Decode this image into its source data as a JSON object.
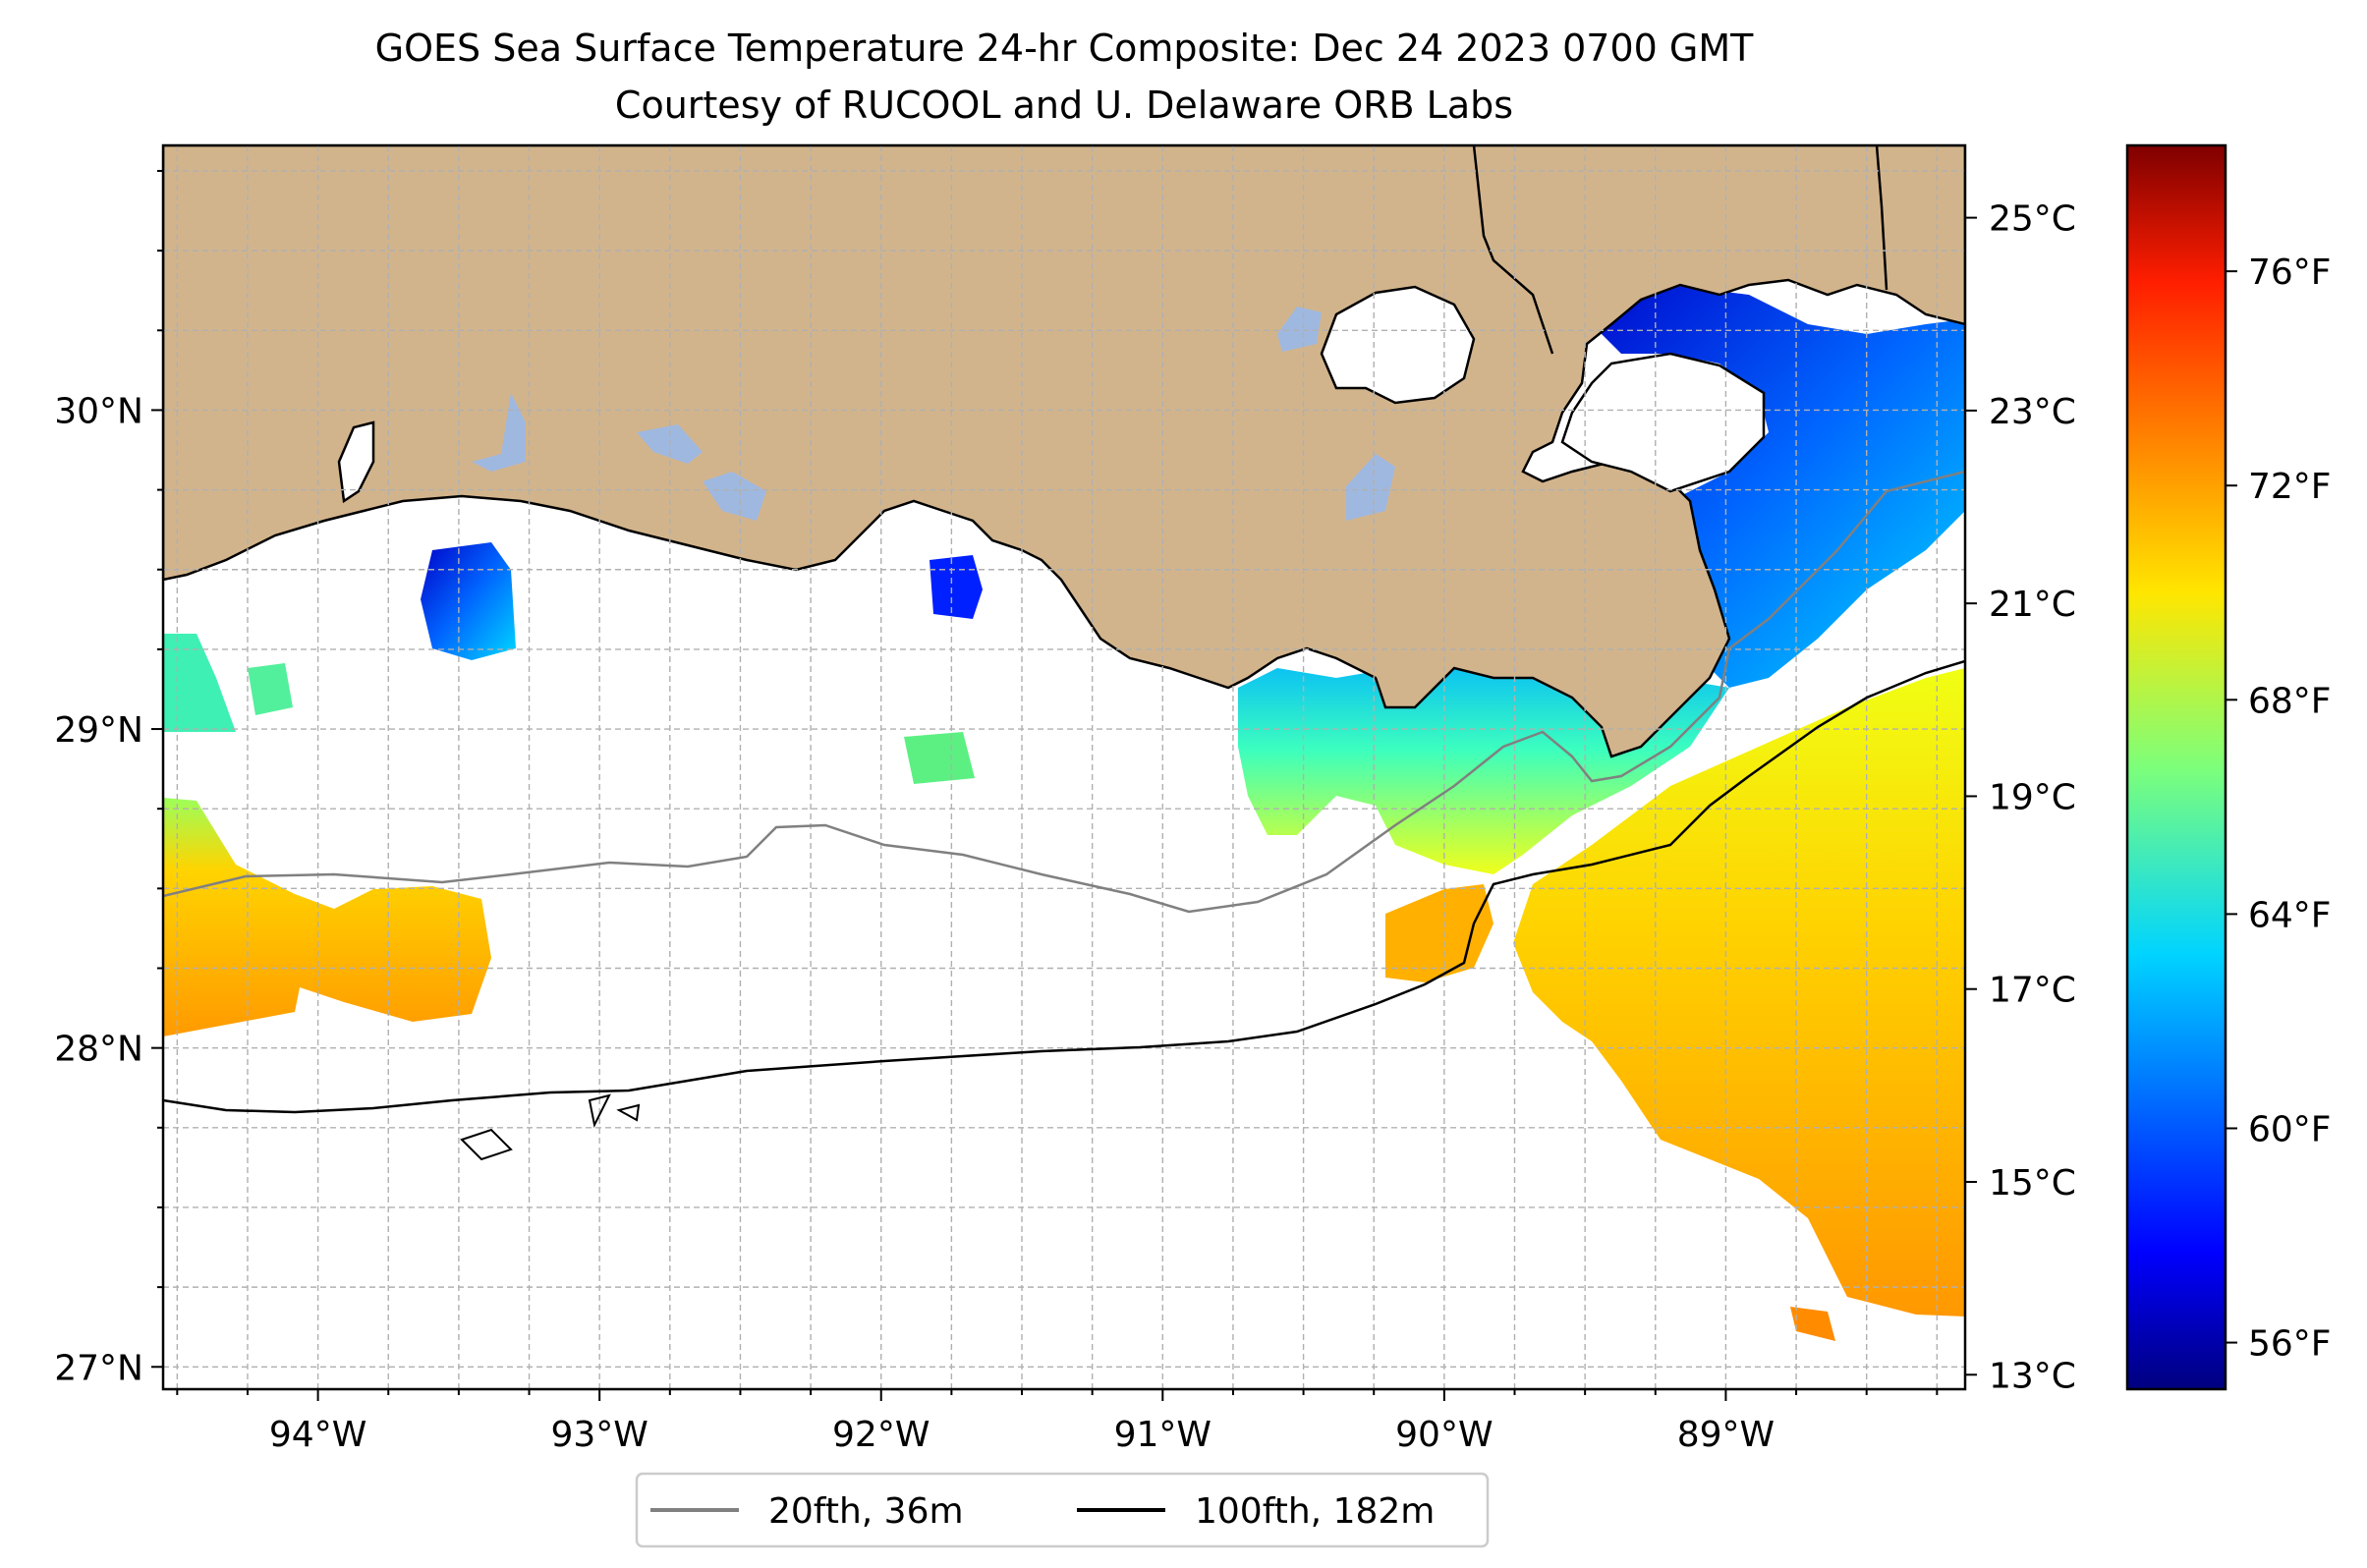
{
  "title": {
    "line1": "GOES Sea Surface Temperature 24-hr Composite: Dec 24 2023 0700 GMT",
    "line2": "Courtesy of RUCOOL and U. Delaware ORB Labs"
  },
  "map": {
    "lon_range": [
      -94.55,
      -88.15
    ],
    "lat_range": [
      26.93,
      30.83
    ],
    "lon_ticks": [
      {
        "value": -94,
        "label": "94°W"
      },
      {
        "value": -93,
        "label": "93°W"
      },
      {
        "value": -92,
        "label": "92°W"
      },
      {
        "value": -91,
        "label": "91°W"
      },
      {
        "value": -90,
        "label": "90°W"
      },
      {
        "value": -89,
        "label": "89°W"
      }
    ],
    "lat_ticks": [
      {
        "value": 27,
        "label": "27°N"
      },
      {
        "value": 28,
        "label": "28°N"
      },
      {
        "value": 29,
        "label": "29°N"
      },
      {
        "value": 30,
        "label": "30°N"
      }
    ],
    "grid": true,
    "land_color": "#d2b48c",
    "lake_color": "#9fb8e0"
  },
  "colorbar": {
    "colormap": "jet",
    "celsius_ticks": [
      {
        "value": 13,
        "label": "13°C"
      },
      {
        "value": 15,
        "label": "15°C"
      },
      {
        "value": 17,
        "label": "17°C"
      },
      {
        "value": 19,
        "label": "19°C"
      },
      {
        "value": 21,
        "label": "21°C"
      },
      {
        "value": 23,
        "label": "23°C"
      },
      {
        "value": 25,
        "label": "25°C"
      }
    ],
    "fahrenheit_ticks": [
      {
        "value": 56,
        "label": "56°F"
      },
      {
        "value": 60,
        "label": "60°F"
      },
      {
        "value": 64,
        "label": "64°F"
      },
      {
        "value": 68,
        "label": "68°F"
      },
      {
        "value": 72,
        "label": "72°F"
      },
      {
        "value": 76,
        "label": "76°F"
      }
    ]
  },
  "legend": {
    "items": [
      {
        "label": "20fth, 36m",
        "color": "#808080"
      },
      {
        "label": "100fth, 182m",
        "color": "#000000"
      }
    ]
  }
}
